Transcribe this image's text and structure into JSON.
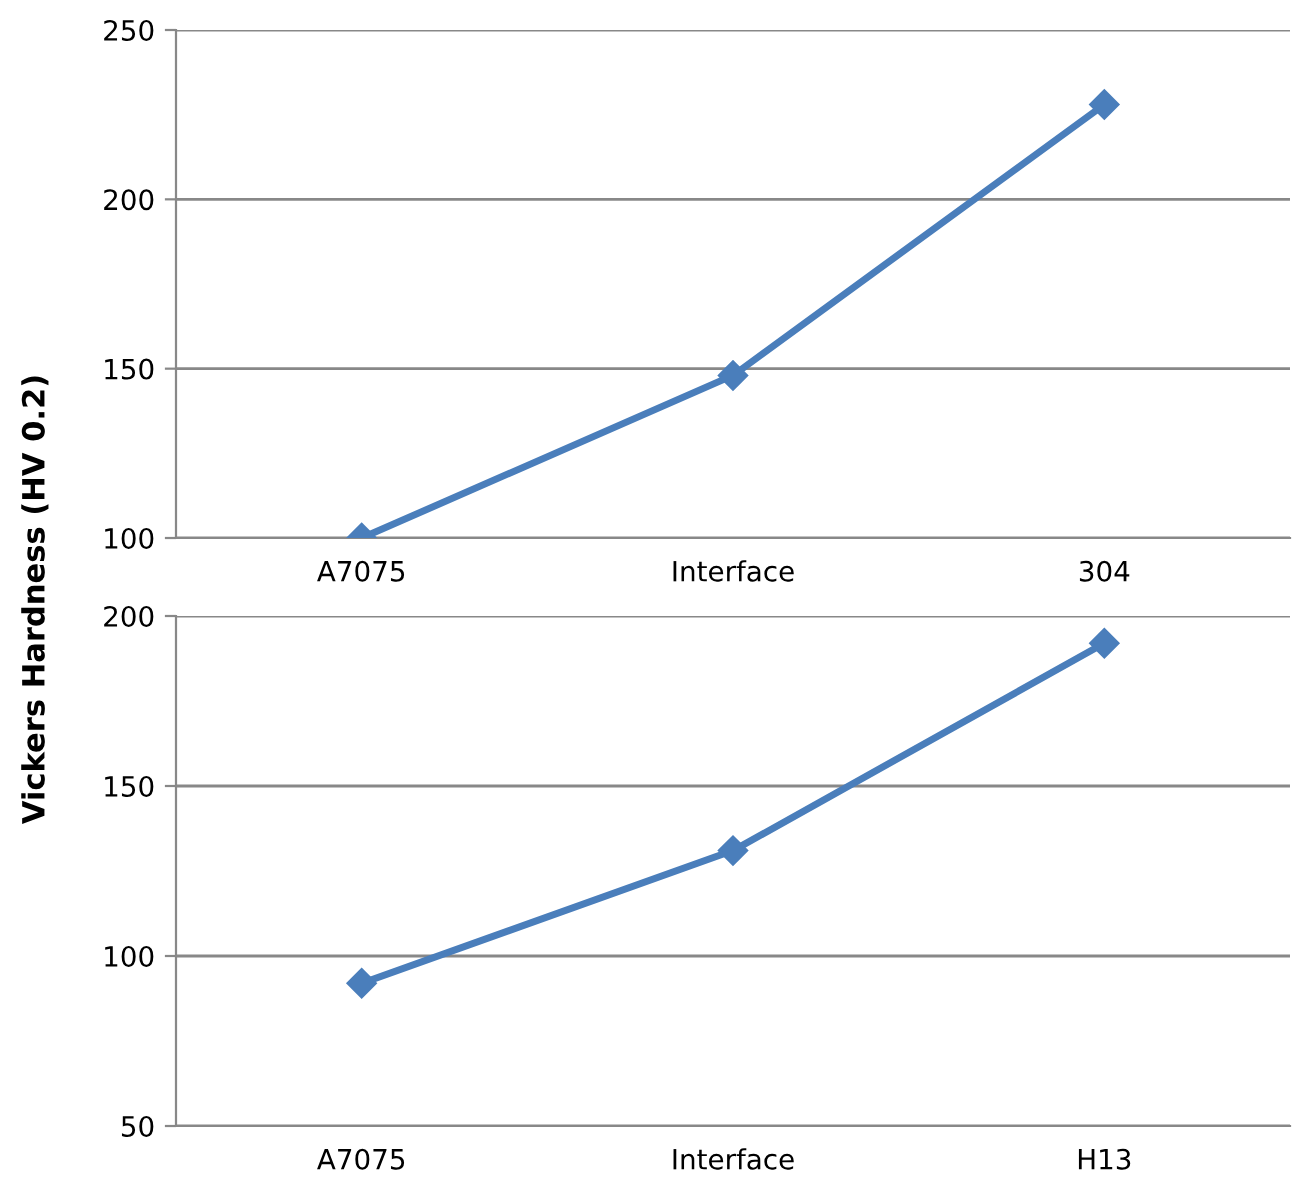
{
  "chart_data": [
    {
      "type": "line",
      "ylabel": "Vickers Hardness (HV 0.2)",
      "categories": [
        "A7075",
        "Interface",
        "304"
      ],
      "series": [
        {
          "color": "#4a7ebb",
          "values": [
            100,
            148,
            228
          ]
        }
      ],
      "ylim": [
        100,
        250
      ],
      "yticks": [
        100,
        150,
        200,
        250
      ],
      "grid": "y",
      "marker": "diamond",
      "line_style": "solid"
    },
    {
      "type": "line",
      "categories": [
        "A7075",
        "Interface",
        "H13"
      ],
      "series": [
        {
          "color": "#4a7ebb",
          "values": [
            92,
            131,
            192
          ]
        }
      ],
      "ylim": [
        50,
        200
      ],
      "yticks": [
        50,
        100,
        150,
        200
      ],
      "grid": "y",
      "marker": "diamond",
      "line_style": "solid"
    }
  ]
}
